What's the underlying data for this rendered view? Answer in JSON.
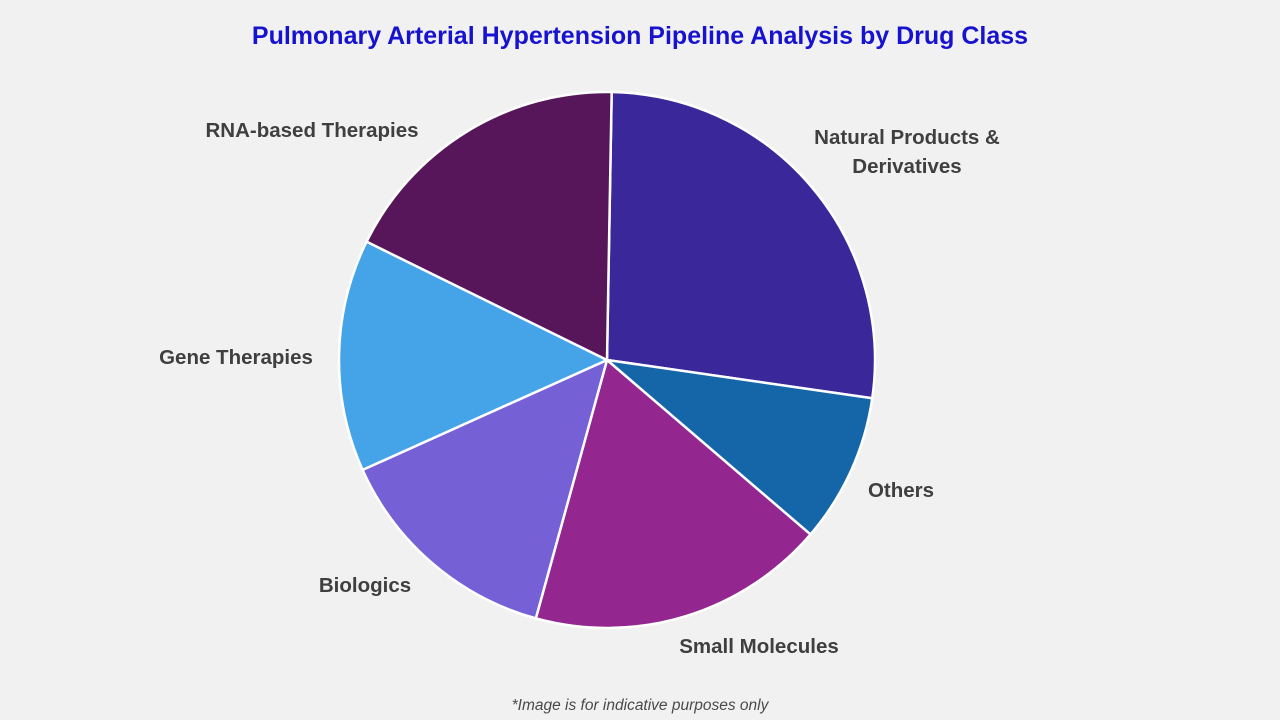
{
  "title": "Pulmonary Arterial Hypertension Pipeline Analysis by Drug Class",
  "footnote": "*Image is for indicative purposes only",
  "theme": {
    "background_color": "#f1f1f1",
    "title_color": "#1712cf",
    "label_color": "#3f3f3f",
    "footnote_color": "#4a4a4a",
    "slice_border_color": "#ffffff"
  },
  "chart_data": {
    "type": "pie",
    "title": "Pulmonary Arterial Hypertension Pipeline Analysis by Drug Class",
    "legend": "none",
    "labels_position": "outside",
    "start_angle_deg": 1,
    "direction": "clockwise-from-top",
    "slices": [
      {
        "label": "Natural Products & Derivatives",
        "value_pct": 27,
        "color": "#3a2799"
      },
      {
        "label": "Others",
        "value_pct": 9,
        "color": "#1566a8"
      },
      {
        "label": "Small Molecules",
        "value_pct": 18,
        "color": "#93278f"
      },
      {
        "label": "Biologics",
        "value_pct": 14,
        "color": "#7560d6"
      },
      {
        "label": "Gene Therapies",
        "value_pct": 14,
        "color": "#45a3e8"
      },
      {
        "label": "RNA-based Therapies",
        "value_pct": 18,
        "color": "#571659"
      }
    ]
  }
}
